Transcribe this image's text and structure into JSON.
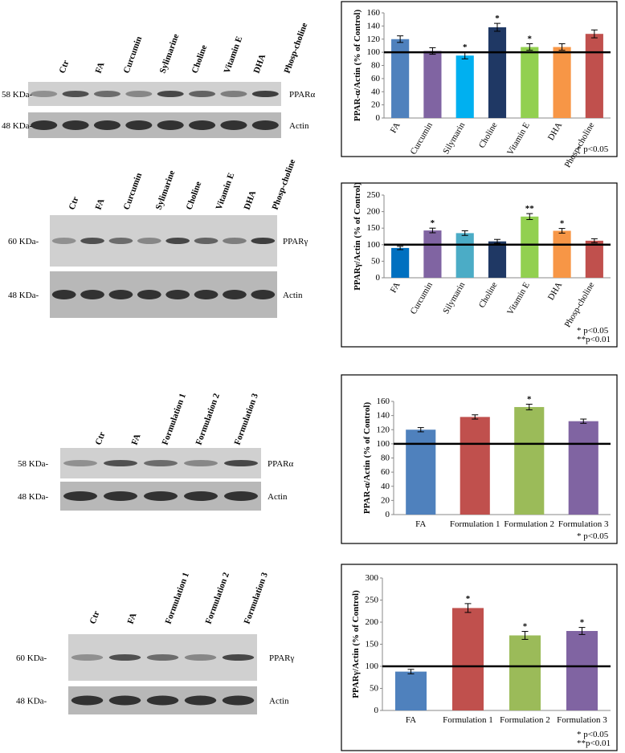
{
  "chart_data": [
    {
      "type": "bar",
      "y_label": "PPAR-α/Actin (% of Control)",
      "categories": [
        "FA",
        "Curcumin",
        "Silymarin",
        "Choline",
        "Vitamin E",
        "DHA",
        "Phosp-choline"
      ],
      "values": [
        120,
        102,
        95,
        138,
        108,
        108,
        128
      ],
      "errors": [
        5,
        5,
        5,
        6,
        5,
        5,
        6
      ],
      "colors": [
        "#4f81bd",
        "#8064a2",
        "#00b0f0",
        "#1f3864",
        "#92d050",
        "#f79646",
        "#c0504d"
      ],
      "markers": [
        null,
        null,
        "*",
        "*",
        "*",
        null,
        null
      ],
      "reference_line": 100,
      "ylim": [
        0,
        160
      ],
      "yticks": [
        0,
        20,
        40,
        60,
        80,
        100,
        120,
        140,
        160
      ],
      "notes": [
        "* p<0.05"
      ],
      "rotate_labels": true
    },
    {
      "type": "bar",
      "y_label": "PPARγ/Actin (% of Control)",
      "categories": [
        "FA",
        "Curcumin",
        "Silymarin",
        "Choline",
        "Vitamin E",
        "DHA",
        "Phosp-choline"
      ],
      "values": [
        90,
        143,
        135,
        110,
        185,
        142,
        112
      ],
      "errors": [
        5,
        7,
        7,
        6,
        9,
        7,
        6
      ],
      "colors": [
        "#0070c0",
        "#8064a2",
        "#4bacc6",
        "#1f3864",
        "#92d050",
        "#f79646",
        "#c0504d"
      ],
      "markers": [
        null,
        "*",
        null,
        null,
        "**",
        "*",
        null
      ],
      "reference_line": 100,
      "ylim": [
        0,
        250
      ],
      "yticks": [
        0,
        50,
        100,
        150,
        200,
        250
      ],
      "notes": [
        "* p<0.05",
        "**p<0.01"
      ],
      "rotate_labels": true
    },
    {
      "type": "bar",
      "y_label": "PPAR-α/Actin (% of Control)",
      "categories": [
        "FA",
        "Formulation 1",
        "Formulation 2",
        "Formulation 3"
      ],
      "values": [
        120,
        138,
        152,
        132
      ],
      "errors": [
        3,
        3,
        4,
        3
      ],
      "colors": [
        "#4f81bd",
        "#c0504d",
        "#9bbb59",
        "#8064a2"
      ],
      "markers": [
        null,
        null,
        "*",
        null
      ],
      "reference_line": 100,
      "ylim": [
        0,
        160
      ],
      "yticks": [
        0,
        20,
        40,
        60,
        80,
        100,
        120,
        140,
        160
      ],
      "notes": [
        "* p<0.05"
      ],
      "rotate_labels": false
    },
    {
      "type": "bar",
      "y_label": "PPARγ/Actin (% of Control)",
      "categories": [
        "FA",
        "Formulation 1",
        "Formulation 2",
        "Formulation 3"
      ],
      "values": [
        88,
        232,
        170,
        180
      ],
      "errors": [
        5,
        10,
        9,
        8
      ],
      "colors": [
        "#4f81bd",
        "#c0504d",
        "#9bbb59",
        "#8064a2"
      ],
      "markers": [
        null,
        "*",
        "*",
        "*"
      ],
      "reference_line": 100,
      "ylim": [
        0,
        300
      ],
      "yticks": [
        0,
        50,
        100,
        150,
        200,
        250,
        300
      ],
      "notes": [
        "* p<0.05",
        "**p<0.01"
      ],
      "rotate_labels": false
    }
  ],
  "blots": [
    {
      "lanes": [
        "Ctr",
        "FA",
        "Curcumin",
        "Sylimarine",
        "Choline",
        "Vitamin  E",
        "DHA",
        "Phosp-choline"
      ],
      "rows": [
        {
          "kda": "58 KDa-",
          "protein": "PPARα"
        },
        {
          "kda": "48 KDa-",
          "protein": "Actin"
        }
      ]
    },
    {
      "lanes": [
        "Ctr",
        "FA",
        "Curcumin",
        "Sylimarine",
        "Choline",
        "Vitamin E",
        "DHA",
        "Phosp-choline"
      ],
      "rows": [
        {
          "kda": "60 KDa-",
          "protein": "PPARγ"
        },
        {
          "kda": "48 KDa-",
          "protein": "Actin"
        }
      ]
    },
    {
      "lanes": [
        "Ctr",
        "FA",
        "Formulation 1",
        "Formulation  2",
        "Formulation  3"
      ],
      "rows": [
        {
          "kda": "58 KDa-",
          "protein": "PPARα"
        },
        {
          "kda": "48 KDa-",
          "protein": "Actin"
        }
      ]
    },
    {
      "lanes": [
        "Ctr",
        "FA",
        "Formulation 1",
        "Formulation  2",
        "Formulation  3"
      ],
      "rows": [
        {
          "kda": "60 KDa-",
          "protein": "PPARγ"
        },
        {
          "kda": "48 KDa-",
          "protein": "Actin"
        }
      ]
    }
  ]
}
